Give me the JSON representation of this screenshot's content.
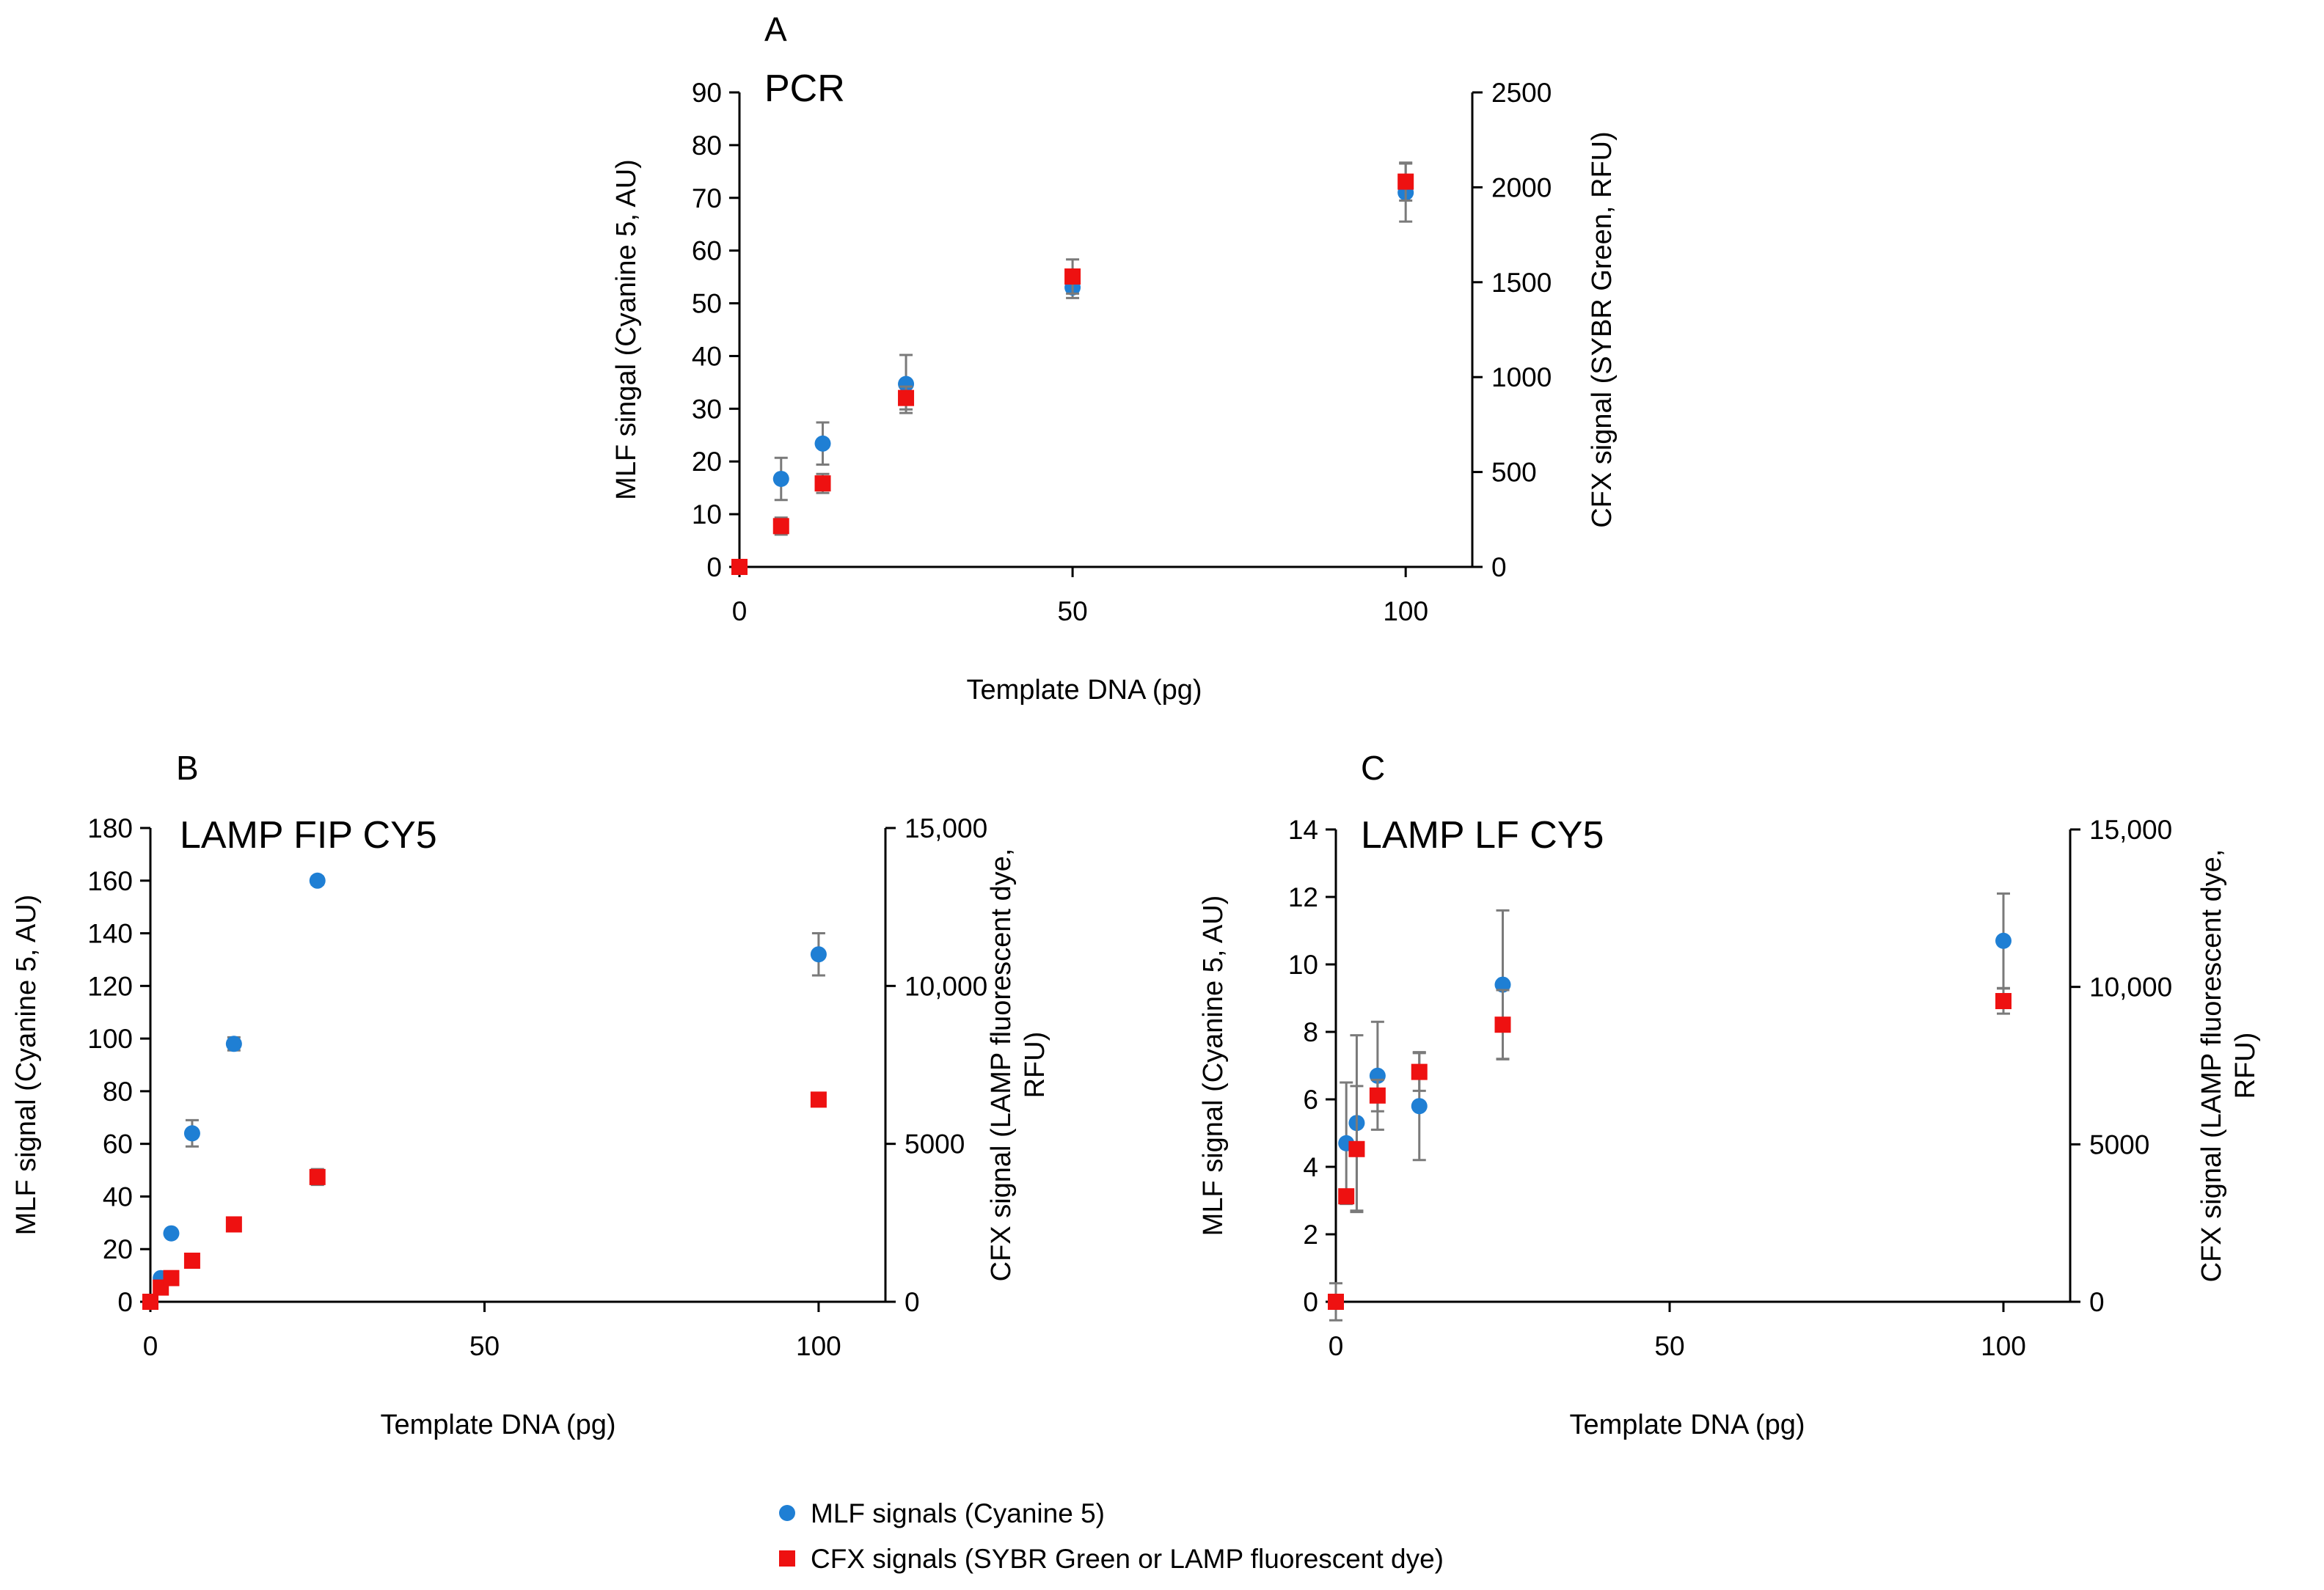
{
  "colors": {
    "mlf": "#1f7fd4",
    "cfx": "#ee1111",
    "axis": "#000000",
    "errorbar": "#7a7a7a"
  },
  "legend": {
    "mlf_label": "MLF signals (Cyanine 5)",
    "cfx_label": "CFX signals (SYBR Green or LAMP fluorescent dye)"
  },
  "chart_data": [
    {
      "id": "A",
      "type": "scatter",
      "panel_letter": "A",
      "title": "PCR",
      "xlabel": "Template DNA (pg)",
      "ylabel_left": "MLF singal (Cyanine 5, AU)",
      "ylabel_right_lines": [
        "CFX signal (SYBR Green, RFU)"
      ],
      "xlim": [
        0,
        110
      ],
      "xticks": [
        0,
        50,
        100
      ],
      "xtick_labels": [
        "0",
        "50",
        "100"
      ],
      "ylim_left": [
        0,
        90
      ],
      "yticks_left": [
        0,
        10,
        20,
        30,
        40,
        50,
        60,
        70,
        80,
        90
      ],
      "ytick_labels_left": [
        "0",
        "10",
        "20",
        "30",
        "40",
        "50",
        "60",
        "70",
        "80",
        "90"
      ],
      "ylim_right": [
        0,
        2500
      ],
      "yticks_right": [
        0,
        500,
        1000,
        1500,
        2000,
        2500
      ],
      "ytick_labels_right": [
        "0",
        "500",
        "1000",
        "1500",
        "2000",
        "2500"
      ],
      "series": [
        {
          "name": "MLF signals (Cyanine 5)",
          "axis": "left",
          "marker": "circle",
          "x": [
            0,
            6.25,
            12.5,
            25,
            50,
            100
          ],
          "y": [
            0,
            16.7,
            23.4,
            34.7,
            53,
            71
          ],
          "err": [
            0,
            4,
            4,
            5.5,
            2,
            5.5
          ]
        },
        {
          "name": "CFX signals (SYBR Green or LAMP fluorescent dye)",
          "axis": "right",
          "marker": "square",
          "x": [
            0,
            6.25,
            12.5,
            25,
            50,
            100
          ],
          "y": [
            0,
            215,
            440,
            890,
            1530,
            2030
          ],
          "err": [
            0,
            45,
            50,
            60,
            90,
            100
          ]
        }
      ]
    },
    {
      "id": "B",
      "type": "scatter",
      "panel_letter": "B",
      "title": "LAMP FIP CY5",
      "xlabel": "Template DNA (pg)",
      "ylabel_left": "MLF signal (Cyanine 5, AU)",
      "ylabel_right_lines": [
        "CFX signal (LAMP fluorescent dye,",
        "RFU)"
      ],
      "xlim": [
        0,
        110
      ],
      "xticks": [
        0,
        50,
        100
      ],
      "xtick_labels": [
        "0",
        "50",
        "100"
      ],
      "ylim_left": [
        0,
        180
      ],
      "yticks_left": [
        0,
        20,
        40,
        60,
        80,
        100,
        120,
        140,
        160,
        180
      ],
      "ytick_labels_left": [
        "0",
        "20",
        "40",
        "60",
        "80",
        "100",
        "120",
        "140",
        "160",
        "180"
      ],
      "ylim_right": [
        0,
        15000
      ],
      "yticks_right": [
        0,
        5000,
        10000,
        15000
      ],
      "ytick_labels_right": [
        "0",
        "5000",
        "10,000",
        "15,000"
      ],
      "series": [
        {
          "name": "MLF signals (Cyanine 5)",
          "axis": "left",
          "marker": "circle",
          "x": [
            0,
            1.56,
            3.125,
            6.25,
            12.5,
            25,
            100
          ],
          "y": [
            0,
            9,
            26,
            64,
            98,
            160,
            132
          ],
          "err": [
            0,
            0,
            0,
            5,
            2.5,
            1.5,
            8
          ]
        },
        {
          "name": "CFX signals (SYBR Green or LAMP fluorescent dye)",
          "axis": "right",
          "marker": "square",
          "x": [
            0,
            1.56,
            3.125,
            6.25,
            12.5,
            25,
            100
          ],
          "y": [
            0,
            450,
            750,
            1300,
            2450,
            3950,
            6400
          ],
          "err": [
            0,
            0,
            0,
            0,
            150,
            250,
            200
          ]
        }
      ]
    },
    {
      "id": "C",
      "type": "scatter",
      "panel_letter": "C",
      "title": "LAMP LF CY5",
      "xlabel": "Template DNA (pg)",
      "ylabel_left": "MLF signal (Cyanine 5, AU)",
      "ylabel_right_lines": [
        "CFX signal (LAMP fluorescent dye,",
        "RFU)"
      ],
      "xlim": [
        0,
        110
      ],
      "xticks": [
        0,
        50,
        100
      ],
      "xtick_labels": [
        "0",
        "50",
        "100"
      ],
      "ylim_left": [
        0,
        14
      ],
      "yticks_left": [
        0,
        2,
        4,
        6,
        8,
        10,
        12,
        14
      ],
      "ytick_labels_left": [
        "0",
        "2",
        "4",
        "6",
        "8",
        "10",
        "12",
        "14"
      ],
      "ylim_right": [
        0,
        15000
      ],
      "yticks_right": [
        0,
        5000,
        10000,
        15000
      ],
      "ytick_labels_right": [
        "0",
        "5000",
        "10,000",
        "15,000"
      ],
      "series": [
        {
          "name": "MLF signals (Cyanine 5)",
          "axis": "left",
          "marker": "circle",
          "x": [
            0,
            1.56,
            3.125,
            6.25,
            12.5,
            25,
            100
          ],
          "y": [
            0,
            4.7,
            5.3,
            6.7,
            5.8,
            9.4,
            10.7
          ],
          "err": [
            0.55,
            1.8,
            2.6,
            1.6,
            1.6,
            2.2,
            1.4
          ]
        },
        {
          "name": "CFX signals (SYBR Green or LAMP fluorescent dye)",
          "axis": "right",
          "marker": "square",
          "x": [
            0,
            1.56,
            3.125,
            6.25,
            12.5,
            25,
            100
          ],
          "y": [
            0,
            3350,
            4850,
            6550,
            7300,
            8800,
            9550
          ],
          "err": [
            0,
            200,
            2000,
            500,
            600,
            1100,
            400
          ]
        }
      ]
    }
  ]
}
